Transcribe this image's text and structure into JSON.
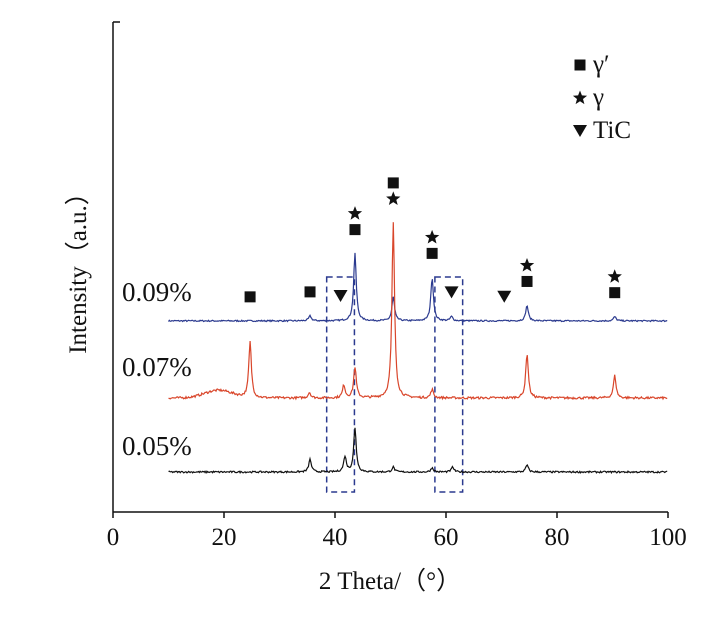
{
  "chart_data": {
    "type": "line",
    "title": "",
    "xlabel": "2 Theta/（°）",
    "ylabel": "Intensity（a.u.）",
    "xlim": [
      0,
      100
    ],
    "xticks": [
      0,
      20,
      40,
      60,
      80,
      100
    ],
    "xtick_labels": [
      "0",
      "20",
      "40",
      "60",
      "80",
      "100"
    ],
    "grid": false,
    "legend": {
      "placement": "top-right",
      "entries": [
        {
          "label": "γ′",
          "marker": "square"
        },
        {
          "label": "γ",
          "marker": "star"
        },
        {
          "label": "TiC",
          "marker": "triangle-down"
        }
      ]
    },
    "series": [
      {
        "name": "0.09%",
        "color": "#2b3a8f",
        "baseline": 0.08,
        "noise": 0.05,
        "hump": null,
        "peaks": [
          [
            35.5,
            0.35
          ],
          [
            43.6,
            4.8
          ],
          [
            50.5,
            1.7
          ],
          [
            57.5,
            3.1
          ],
          [
            61,
            0.3
          ],
          [
            74.6,
            1.1
          ],
          [
            90.4,
            0.3
          ]
        ]
      },
      {
        "name": "0.07%",
        "color": "#d9462b",
        "baseline": 0,
        "noise": 0.08,
        "hump": {
          "x": 19,
          "width": 3.5,
          "height": 0.55
        },
        "peaks": [
          [
            24.7,
            4.0
          ],
          [
            35.4,
            0.4
          ],
          [
            41.6,
            0.9
          ],
          [
            43.6,
            2.2
          ],
          [
            50.5,
            12.5
          ],
          [
            57.5,
            0.6
          ],
          [
            74.6,
            3.2
          ],
          [
            90.4,
            1.6
          ]
        ]
      },
      {
        "name": "0.05%",
        "color": "#111111",
        "baseline": 0,
        "noise": 0.06,
        "hump": null,
        "peaks": [
          [
            35.5,
            0.9
          ],
          [
            41.8,
            1.1
          ],
          [
            43.6,
            3.1
          ],
          [
            50.5,
            0.35
          ],
          [
            57.5,
            0.3
          ],
          [
            61.2,
            0.35
          ],
          [
            74.6,
            0.5
          ]
        ]
      }
    ],
    "phase_markers": [
      {
        "x": 24.7,
        "series": "0.09%",
        "symbols": [
          "square"
        ]
      },
      {
        "x": 35.5,
        "series": "0.09%",
        "symbols": [
          "square"
        ]
      },
      {
        "x": 41.0,
        "series": "0.09%",
        "symbols": [
          "triangle-down"
        ]
      },
      {
        "x": 43.6,
        "series": "0.09%",
        "symbols": [
          "square",
          "star"
        ]
      },
      {
        "x": 50.5,
        "series": "0.07%",
        "symbols": [
          "star",
          "square"
        ]
      },
      {
        "x": 57.5,
        "series": "0.09%",
        "symbols": [
          "square",
          "star"
        ]
      },
      {
        "x": 61.0,
        "series": "0.09%",
        "symbols": [
          "triangle-down"
        ]
      },
      {
        "x": 70.5,
        "series": "0.09%",
        "symbols": [
          "triangle-down"
        ]
      },
      {
        "x": 74.6,
        "series": "0.09%",
        "symbols": [
          "square",
          "star"
        ]
      },
      {
        "x": 90.4,
        "series": "0.09%",
        "symbols": [
          "square",
          "star"
        ]
      }
    ],
    "highlight_regions": [
      {
        "x_from": 38.5,
        "x_to": 43.5,
        "style": "dashed"
      },
      {
        "x_from": 58.0,
        "x_to": 63.0,
        "style": "dashed"
      }
    ]
  }
}
